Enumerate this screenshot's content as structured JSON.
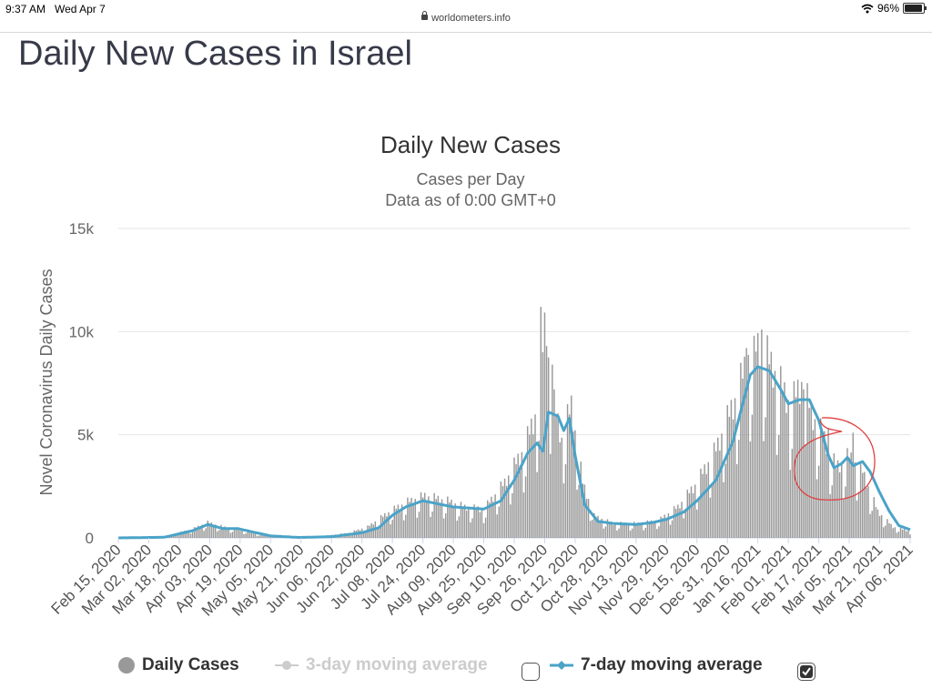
{
  "status": {
    "time": "9:37 AM",
    "date": "Wed Apr 7",
    "battery": "96%"
  },
  "browser": {
    "url": "worldometers.info"
  },
  "page": {
    "title": "Daily New Cases in Israel"
  },
  "legend": {
    "daily": "Daily Cases",
    "ma3": "3-day moving average",
    "ma7": "7-day moving average",
    "ma3_checked": false,
    "ma7_checked": true
  },
  "colors": {
    "bars": "#999999",
    "ma7": "#4aa3c8",
    "ma3_disabled": "#cccccc",
    "annotation": "#e04040"
  },
  "chart_data": {
    "type": "bar",
    "title": "Daily New Cases",
    "subtitle": "Cases per Day",
    "subtitle2": "Data as of 0:00 GMT+0",
    "ylabel": "Novel Coronavirus Daily Cases",
    "ylim": [
      0,
      15000
    ],
    "yticks": [
      0,
      5000,
      10000,
      15000
    ],
    "ytick_labels": [
      "0",
      "5k",
      "10k",
      "15k"
    ],
    "x_start": "2020-02-15",
    "x_end": "2021-04-06",
    "xtick_labels": [
      "Feb 15, 2020",
      "Mar 02, 2020",
      "Mar 18, 2020",
      "Apr 03, 2020",
      "Apr 19, 2020",
      "May 05, 2020",
      "May 21, 2020",
      "Jun 06, 2020",
      "Jun 22, 2020",
      "Jul 08, 2020",
      "Jul 24, 2020",
      "Aug 09, 2020",
      "Aug 25, 2020",
      "Sep 10, 2020",
      "Sep 26, 2020",
      "Oct 12, 2020",
      "Oct 28, 2020",
      "Nov 13, 2020",
      "Nov 29, 2020",
      "Dec 15, 2020",
      "Dec 31, 2020",
      "Jan 16, 2021",
      "Feb 01, 2021",
      "Feb 17, 2021",
      "Mar 05, 2021",
      "Mar 21, 2021",
      "Apr 06, 2021"
    ],
    "series": [
      {
        "name": "Daily Cases",
        "kind": "bar",
        "keyframes": [
          [
            "2020-02-15",
            0
          ],
          [
            "2020-03-10",
            50
          ],
          [
            "2020-03-25",
            400
          ],
          [
            "2020-04-02",
            700
          ],
          [
            "2020-04-10",
            500
          ],
          [
            "2020-04-20",
            350
          ],
          [
            "2020-05-01",
            120
          ],
          [
            "2020-05-15",
            20
          ],
          [
            "2020-06-01",
            80
          ],
          [
            "2020-06-15",
            220
          ],
          [
            "2020-06-25",
            500
          ],
          [
            "2020-07-05",
            1100
          ],
          [
            "2020-07-15",
            1600
          ],
          [
            "2020-07-25",
            1900
          ],
          [
            "2020-08-05",
            1700
          ],
          [
            "2020-08-15",
            1400
          ],
          [
            "2020-08-25",
            1300
          ],
          [
            "2020-09-05",
            2500
          ],
          [
            "2020-09-15",
            4000
          ],
          [
            "2020-09-22",
            5800
          ],
          [
            "2020-09-26",
            9500
          ],
          [
            "2020-10-01",
            6000
          ],
          [
            "2020-10-05",
            4500
          ],
          [
            "2020-10-10",
            6000
          ],
          [
            "2020-10-16",
            2500
          ],
          [
            "2020-10-22",
            1000
          ],
          [
            "2020-11-01",
            650
          ],
          [
            "2020-11-15",
            650
          ],
          [
            "2020-11-25",
            800
          ],
          [
            "2020-12-05",
            1400
          ],
          [
            "2020-12-15",
            2500
          ],
          [
            "2020-12-25",
            4000
          ],
          [
            "2021-01-05",
            6500
          ],
          [
            "2021-01-12",
            8500
          ],
          [
            "2021-01-18",
            8700
          ],
          [
            "2021-01-25",
            7500
          ],
          [
            "2021-02-02",
            6000
          ],
          [
            "2021-02-08",
            7000
          ],
          [
            "2021-02-14",
            5500
          ],
          [
            "2021-02-20",
            4500
          ],
          [
            "2021-02-26",
            3200
          ],
          [
            "2021-03-05",
            3700
          ],
          [
            "2021-03-12",
            3000
          ],
          [
            "2021-03-20",
            1200
          ],
          [
            "2021-03-28",
            500
          ],
          [
            "2021-04-06",
            300
          ]
        ]
      },
      {
        "name": "7-day moving average",
        "kind": "line",
        "keyframes": [
          [
            "2020-02-15",
            0
          ],
          [
            "2020-03-10",
            30
          ],
          [
            "2020-03-25",
            350
          ],
          [
            "2020-04-02",
            650
          ],
          [
            "2020-04-10",
            450
          ],
          [
            "2020-04-18",
            450
          ],
          [
            "2020-04-25",
            300
          ],
          [
            "2020-05-05",
            100
          ],
          [
            "2020-05-20",
            20
          ],
          [
            "2020-06-06",
            60
          ],
          [
            "2020-06-22",
            250
          ],
          [
            "2020-07-01",
            500
          ],
          [
            "2020-07-08",
            1100
          ],
          [
            "2020-07-15",
            1500
          ],
          [
            "2020-07-24",
            1800
          ],
          [
            "2020-08-01",
            1650
          ],
          [
            "2020-08-09",
            1500
          ],
          [
            "2020-08-17",
            1450
          ],
          [
            "2020-08-25",
            1400
          ],
          [
            "2020-09-03",
            1800
          ],
          [
            "2020-09-10",
            2800
          ],
          [
            "2020-09-17",
            4100
          ],
          [
            "2020-09-22",
            4600
          ],
          [
            "2020-09-25",
            4200
          ],
          [
            "2020-09-28",
            6100
          ],
          [
            "2020-10-03",
            5900
          ],
          [
            "2020-10-06",
            5200
          ],
          [
            "2020-10-09",
            5800
          ],
          [
            "2020-10-12",
            4000
          ],
          [
            "2020-10-17",
            1600
          ],
          [
            "2020-10-24",
            800
          ],
          [
            "2020-11-01",
            700
          ],
          [
            "2020-11-13",
            650
          ],
          [
            "2020-11-22",
            750
          ],
          [
            "2020-11-29",
            900
          ],
          [
            "2020-12-08",
            1250
          ],
          [
            "2020-12-15",
            1800
          ],
          [
            "2020-12-25",
            2800
          ],
          [
            "2021-01-03",
            4700
          ],
          [
            "2021-01-08",
            6500
          ],
          [
            "2021-01-12",
            7900
          ],
          [
            "2021-01-16",
            8300
          ],
          [
            "2021-01-22",
            8100
          ],
          [
            "2021-01-28",
            7200
          ],
          [
            "2021-02-01",
            6500
          ],
          [
            "2021-02-07",
            6700
          ],
          [
            "2021-02-12",
            6700
          ],
          [
            "2021-02-17",
            5700
          ],
          [
            "2021-02-22",
            4000
          ],
          [
            "2021-02-25",
            3400
          ],
          [
            "2021-03-01",
            3600
          ],
          [
            "2021-03-04",
            3900
          ],
          [
            "2021-03-07",
            3500
          ],
          [
            "2021-03-12",
            3700
          ],
          [
            "2021-03-16",
            3200
          ],
          [
            "2021-03-21",
            2200
          ],
          [
            "2021-03-26",
            1300
          ],
          [
            "2021-03-31",
            600
          ],
          [
            "2021-04-06",
            400
          ]
        ]
      }
    ],
    "spikes": [
      [
        "2020-09-24",
        11200
      ],
      [
        "2020-09-27",
        9300
      ],
      [
        "2020-09-30",
        8400
      ],
      [
        "2021-01-18",
        10100
      ],
      [
        "2021-01-14",
        9800
      ],
      [
        "2021-01-10",
        9200
      ],
      [
        "2021-02-09",
        7200
      ],
      [
        "2021-02-22",
        5300
      ],
      [
        "2021-03-07",
        5100
      ]
    ],
    "grid": true,
    "legend_position": "bottom"
  }
}
